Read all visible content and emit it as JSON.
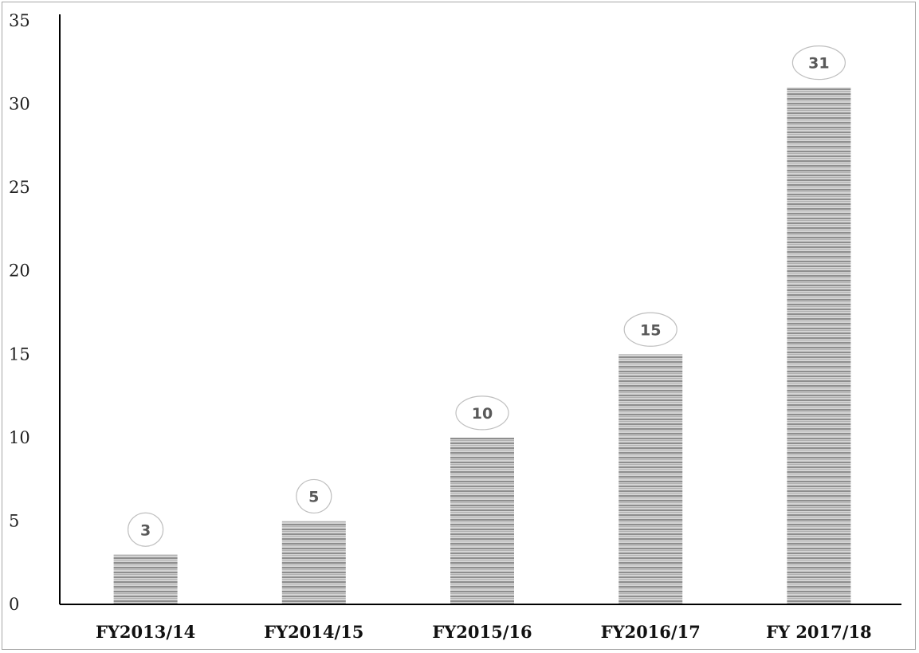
{
  "chart_data": {
    "type": "bar",
    "categories": [
      "FY2013/14",
      "FY2014/15",
      "FY2015/16",
      "FY2016/17",
      "FY 2017/18"
    ],
    "values": [
      3,
      5,
      10,
      15,
      31
    ],
    "data_labels": [
      "3",
      "5",
      "10",
      "15",
      "31"
    ],
    "title": "",
    "xlabel": "",
    "ylabel": "",
    "ylim": [
      0,
      35
    ],
    "yticks": [
      "0",
      "5",
      "10",
      "15",
      "20",
      "25",
      "30",
      "35"
    ],
    "grid": false,
    "legend": "none",
    "bar_pattern": "horizontal-stripes",
    "colors": {
      "bar_fill": "#c8c8c8",
      "bar_stripe": "#8c8c8c",
      "axis": "#000000",
      "label_text": "#595959",
      "label_border": "#bfbfbf",
      "frame": "#a6a6a6"
    }
  }
}
